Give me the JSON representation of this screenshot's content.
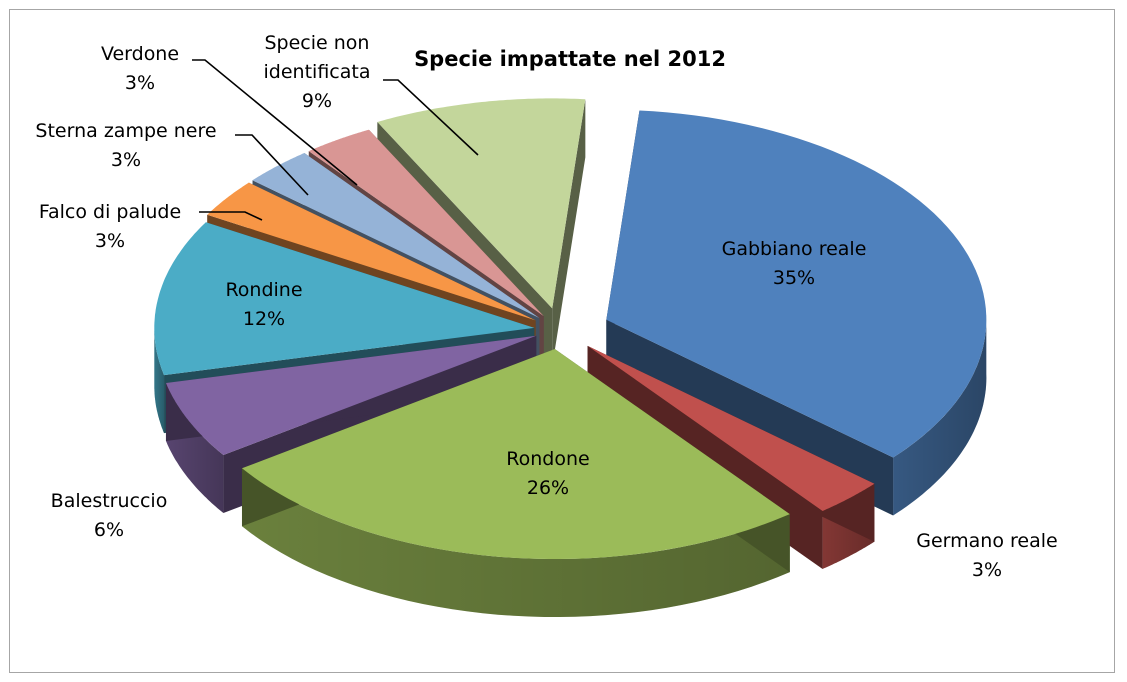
{
  "chart_data": {
    "type": "pie",
    "title": "Specie impattate nel 2012",
    "slices": [
      {
        "label": "Gabbiano reale",
        "pct": "35%",
        "value": 35,
        "color": "#4f81bd"
      },
      {
        "label": "Germano reale",
        "pct": "3%",
        "value": 3,
        "color": "#c0504d"
      },
      {
        "label": "Rondone",
        "pct": "26%",
        "value": 26,
        "color": "#9bbb59"
      },
      {
        "label": "Balestruccio",
        "pct": "6%",
        "value": 6,
        "color": "#8064a2"
      },
      {
        "label": "Rondine",
        "pct": "12%",
        "value": 12,
        "color": "#4bacc6"
      },
      {
        "label": "Falco di palude",
        "pct": "3%",
        "value": 3,
        "color": "#f79646"
      },
      {
        "label": "Sterna zampe nere",
        "pct": "3%",
        "value": 3,
        "color": "#95b3d7"
      },
      {
        "label": "Verdone",
        "pct": "3%",
        "value": 3,
        "color": "#d99694"
      },
      {
        "label": "Specie non identificata",
        "pct": "9%",
        "value": 9,
        "color": "#c3d69b"
      }
    ],
    "exploded": true,
    "legend": "none",
    "data_labels": "category and percentage"
  }
}
